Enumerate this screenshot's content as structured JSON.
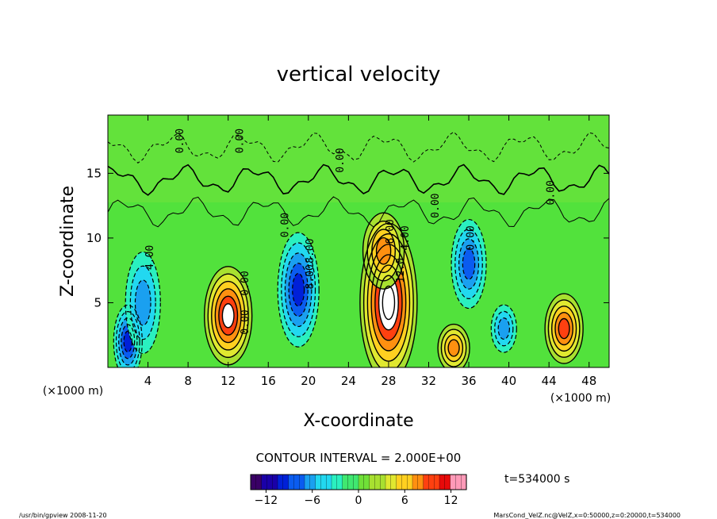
{
  "chart_data": {
    "type": "heatmap",
    "title": "vertical velocity",
    "xlabel": "X-coordinate",
    "ylabel": "Z-coordinate",
    "x_unit_label": "(×1000 m)",
    "z_unit_label": "(×1000 m)",
    "xlim": [
      0,
      50
    ],
    "ylim": [
      0,
      19.5
    ],
    "x_ticks": [
      4,
      8,
      12,
      16,
      20,
      24,
      28,
      32,
      36,
      40,
      44,
      48
    ],
    "y_ticks": [
      5,
      10,
      15
    ],
    "contour_interval_text": "CONTOUR INTERVAL = 2.000E+00",
    "time_label": "t=534000 s",
    "colorbar": {
      "range": [
        -14,
        14
      ],
      "ticks": [
        -12,
        -6,
        0,
        6,
        12
      ],
      "colors": [
        "#3a0066",
        "#1a00a8",
        "#0020d8",
        "#0a5cf0",
        "#1aa0f0",
        "#22d8f0",
        "#2af0c0",
        "#40e870",
        "#70e038",
        "#a8e030",
        "#e0e830",
        "#ffd020",
        "#ff9010",
        "#ff4010",
        "#e80a0a",
        "#ff9ab8"
      ]
    },
    "contour_labels": [
      "0.00",
      "0.00",
      "0.00",
      "0.00",
      "0.00",
      "0.00",
      "0.00",
      "4.00",
      "4.00",
      "8.00",
      "8.00",
      "8.00",
      "12.0",
      "0.00",
      "0.00"
    ],
    "cells": [
      {
        "x": 2.0,
        "z": 2.0,
        "w": -10
      },
      {
        "x": 3.5,
        "z": 5.0,
        "w": -6
      },
      {
        "x": 12.0,
        "z": 4.0,
        "w": 12
      },
      {
        "x": 19.0,
        "z": 6.0,
        "w": -10
      },
      {
        "x": 28.0,
        "z": 5.0,
        "w": 14
      },
      {
        "x": 27.5,
        "z": 9.0,
        "w": 8
      },
      {
        "x": 36.0,
        "z": 8.0,
        "w": -8
      },
      {
        "x": 34.5,
        "z": 1.5,
        "w": 8
      },
      {
        "x": 39.5,
        "z": 3.0,
        "w": -6
      },
      {
        "x": 45.5,
        "z": 3.0,
        "w": 10
      }
    ]
  },
  "footer": {
    "left": "/usr/bin/gpview   2008-11-20",
    "right": "MarsCond_VelZ.nc@VelZ,x=0:50000,z=0:20000,t=534000"
  }
}
